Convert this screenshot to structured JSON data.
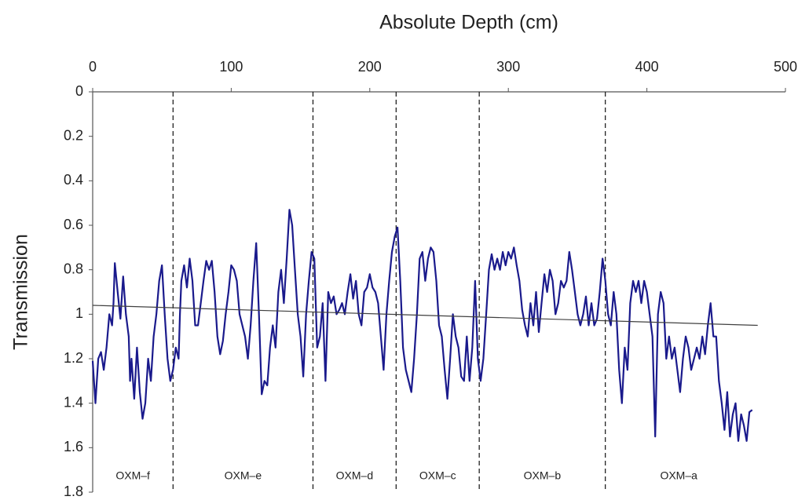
{
  "chart_data": {
    "type": "line",
    "title": "Absolute Depth (cm)",
    "y_label": "Transmission",
    "color": "#1a1a8c",
    "invert_y": true,
    "xlim": [
      0,
      500
    ],
    "xticks": [
      0,
      100,
      200,
      300,
      400,
      500
    ],
    "ylim": [
      0,
      1.8
    ],
    "yticks": [
      0,
      0.2,
      0.4,
      0.6,
      0.8,
      1,
      1.2,
      1.4,
      1.6,
      1.8
    ],
    "x": [
      0,
      2,
      4,
      6,
      8,
      10,
      12,
      14,
      15,
      16,
      18,
      20,
      22,
      24,
      26,
      27,
      28,
      30,
      32,
      34,
      36,
      38,
      40,
      42,
      44,
      46,
      48,
      50,
      52,
      54,
      56,
      58,
      60,
      62,
      63,
      64,
      66,
      68,
      70,
      72,
      74,
      76,
      78,
      80,
      82,
      84,
      86,
      88,
      90,
      92,
      94,
      96,
      98,
      100,
      102,
      104,
      106,
      108,
      110,
      112,
      114,
      116,
      118,
      120,
      122,
      124,
      126,
      128,
      130,
      132,
      134,
      136,
      138,
      140,
      142,
      144,
      146,
      148,
      150,
      152,
      154,
      156,
      158,
      160,
      162,
      164,
      166,
      168,
      170,
      172,
      174,
      176,
      178,
      180,
      182,
      184,
      186,
      188,
      190,
      192,
      194,
      196,
      198,
      200,
      202,
      204,
      206,
      208,
      210,
      212,
      214,
      216,
      218,
      220,
      222,
      224,
      226,
      228,
      230,
      232,
      234,
      236,
      238,
      240,
      242,
      244,
      246,
      248,
      250,
      252,
      254,
      256,
      258,
      260,
      262,
      264,
      266,
      268,
      270,
      272,
      274,
      276,
      278,
      280,
      282,
      284,
      286,
      288,
      290,
      292,
      294,
      296,
      298,
      300,
      302,
      304,
      306,
      308,
      310,
      312,
      314,
      316,
      318,
      320,
      322,
      324,
      326,
      328,
      330,
      332,
      334,
      336,
      338,
      340,
      342,
      344,
      346,
      348,
      350,
      352,
      354,
      356,
      358,
      360,
      362,
      364,
      366,
      368,
      370,
      372,
      374,
      376,
      378,
      380,
      382,
      384,
      386,
      388,
      390,
      392,
      394,
      396,
      398,
      400,
      402,
      404,
      406,
      408,
      410,
      412,
      414,
      416,
      418,
      420,
      422,
      424,
      426,
      428,
      430,
      432,
      434,
      436,
      438,
      440,
      442,
      444,
      446,
      448,
      450,
      452,
      454,
      456,
      458,
      460,
      462,
      464,
      466,
      468,
      470,
      472,
      474,
      476
    ],
    "values": [
      1.21,
      1.4,
      1.2,
      1.17,
      1.25,
      1.15,
      1.0,
      1.05,
      0.95,
      0.77,
      0.9,
      1.02,
      0.83,
      1.0,
      1.1,
      1.3,
      1.2,
      1.38,
      1.15,
      1.35,
      1.47,
      1.4,
      1.2,
      1.3,
      1.1,
      1.0,
      0.85,
      0.78,
      1.0,
      1.2,
      1.3,
      1.25,
      1.15,
      1.2,
      1.0,
      0.85,
      0.78,
      0.88,
      0.75,
      0.85,
      1.05,
      1.05,
      0.95,
      0.85,
      0.76,
      0.8,
      0.76,
      0.9,
      1.1,
      1.18,
      1.12,
      1.0,
      0.9,
      0.78,
      0.8,
      0.85,
      1.0,
      1.05,
      1.1,
      1.2,
      1.05,
      0.85,
      0.68,
      1.0,
      1.36,
      1.3,
      1.32,
      1.15,
      1.05,
      1.15,
      0.9,
      0.8,
      0.95,
      0.75,
      0.53,
      0.6,
      0.8,
      1.0,
      1.1,
      1.28,
      1.0,
      0.85,
      0.72,
      0.75,
      1.15,
      1.1,
      0.95,
      1.3,
      0.9,
      0.95,
      0.92,
      1.0,
      0.98,
      0.95,
      1.0,
      0.9,
      0.82,
      0.93,
      0.85,
      1.0,
      1.05,
      0.9,
      0.88,
      0.82,
      0.88,
      0.9,
      0.95,
      1.1,
      1.25,
      1.0,
      0.85,
      0.72,
      0.65,
      0.61,
      0.85,
      1.15,
      1.25,
      1.3,
      1.35,
      1.2,
      1.0,
      0.75,
      0.72,
      0.85,
      0.75,
      0.7,
      0.72,
      0.85,
      1.05,
      1.1,
      1.25,
      1.38,
      1.2,
      1.0,
      1.1,
      1.15,
      1.28,
      1.3,
      1.1,
      1.3,
      1.15,
      0.85,
      1.2,
      1.3,
      1.2,
      1.0,
      0.8,
      0.73,
      0.8,
      0.75,
      0.8,
      0.72,
      0.78,
      0.72,
      0.75,
      0.7,
      0.78,
      0.85,
      0.98,
      1.05,
      1.1,
      0.95,
      1.05,
      0.9,
      1.08,
      0.95,
      0.82,
      0.9,
      0.8,
      0.85,
      1.0,
      0.95,
      0.85,
      0.88,
      0.85,
      0.72,
      0.8,
      0.9,
      1.0,
      1.05,
      1.0,
      0.92,
      1.05,
      0.95,
      1.05,
      1.02,
      0.9,
      0.75,
      0.85,
      1.0,
      1.05,
      0.9,
      1.0,
      1.25,
      1.4,
      1.15,
      1.25,
      0.95,
      0.85,
      0.9,
      0.85,
      0.95,
      0.85,
      0.9,
      1.0,
      1.1,
      1.55,
      1.0,
      0.9,
      0.95,
      1.2,
      1.1,
      1.2,
      1.15,
      1.25,
      1.35,
      1.2,
      1.1,
      1.15,
      1.25,
      1.2,
      1.15,
      1.2,
      1.1,
      1.18,
      1.05,
      0.95,
      1.1,
      1.1,
      1.3,
      1.4,
      1.52,
      1.35,
      1.55,
      1.45,
      1.4,
      1.57,
      1.45,
      1.5,
      1.57,
      1.44,
      1.43
    ],
    "trend": {
      "x": [
        0,
        480
      ],
      "values": [
        0.96,
        1.05
      ],
      "color": "#404040"
    },
    "boundaries": [
      58,
      159,
      219,
      279,
      370
    ],
    "zones": [
      "OXM–f",
      "OXM–e",
      "OXM–d",
      "OXM–c",
      "OXM–b",
      "OXM–a"
    ]
  }
}
